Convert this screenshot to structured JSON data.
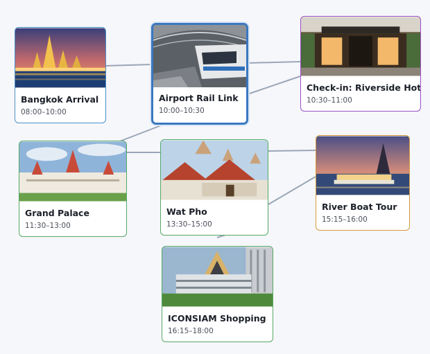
{
  "nodes": [
    {
      "id": "bangkok-arrival",
      "title": "Bangkok Arrival",
      "time": "08:00–10:00",
      "border": "#4a90c8",
      "selected": false
    },
    {
      "id": "airport-rail-link",
      "title": "Airport Rail Link",
      "time": "10:00–10:30",
      "border": "#3a78c0",
      "selected": true
    },
    {
      "id": "check-in-riverside-hotel",
      "title": "Check-in: Riverside Hotel",
      "time": "10:30–11:00",
      "border": "#9b4fc9",
      "selected": false
    },
    {
      "id": "grand-palace",
      "title": "Grand Palace",
      "time": "11:30–13:00",
      "border": "#55a866",
      "selected": false
    },
    {
      "id": "wat-pho",
      "title": "Wat Pho",
      "time": "13:30–15:00",
      "border": "#55a866",
      "selected": false
    },
    {
      "id": "river-boat-tour",
      "title": "River Boat Tour",
      "time": "15:15–16:00",
      "border": "#d49a3a",
      "selected": false
    },
    {
      "id": "iconsiam-shopping",
      "title": "ICONSIAM Shopping",
      "time": "16:15–18:00",
      "border": "#55a866",
      "selected": false
    }
  ],
  "edge_color": "#9aa6b8"
}
